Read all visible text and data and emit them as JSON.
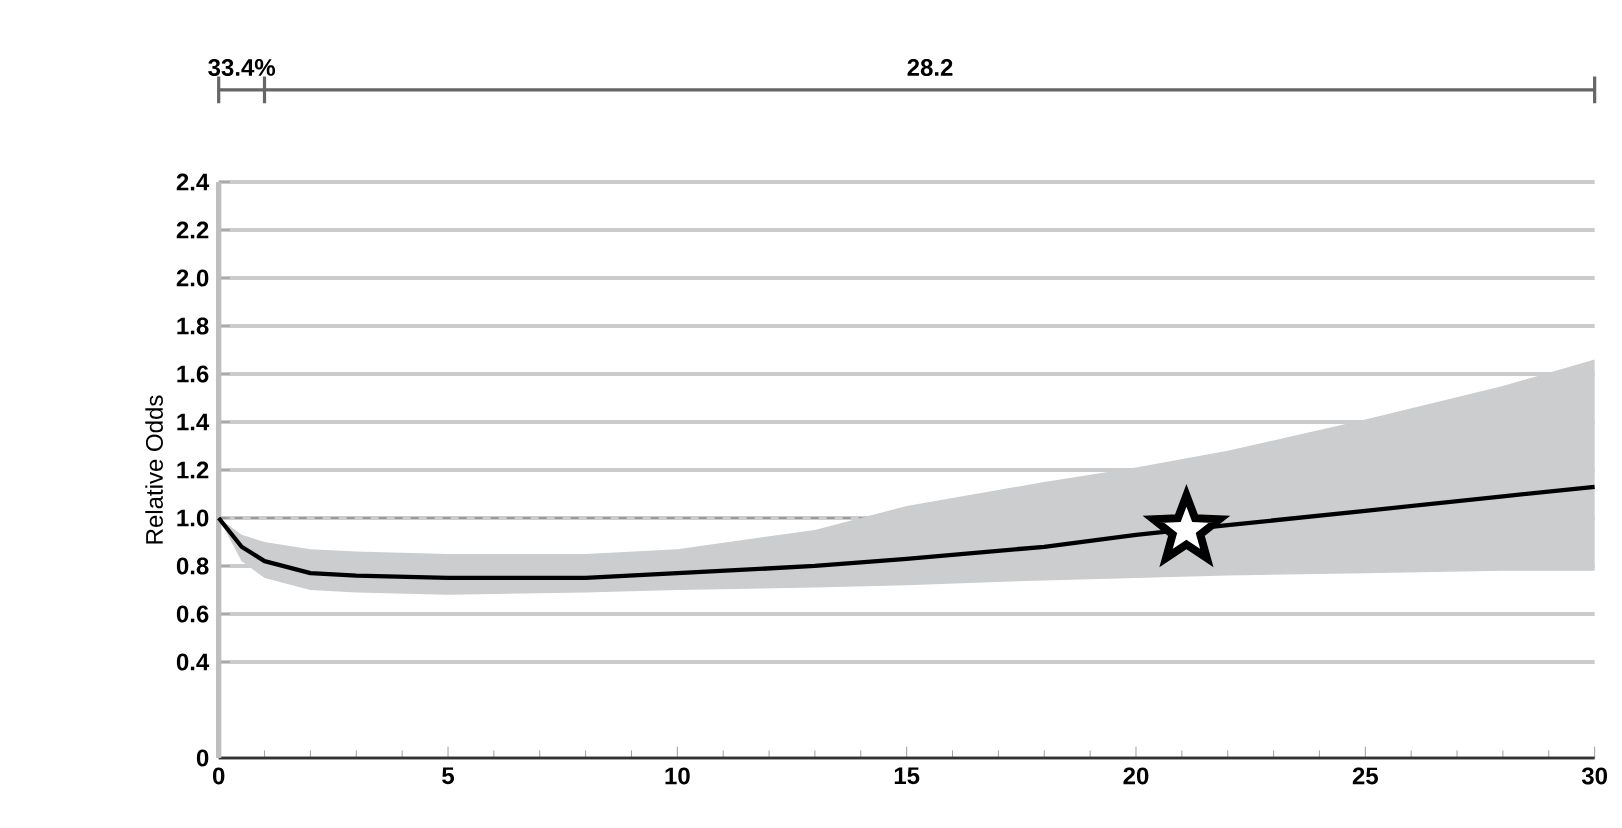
{
  "chart_data": {
    "type": "line",
    "ylabel": "Relative Odds",
    "xlim": [
      0,
      30
    ],
    "xticks": [
      0,
      5,
      10,
      15,
      20,
      25,
      30
    ],
    "ylim": [
      0,
      2.4
    ],
    "yticks": [
      {
        "value": 0,
        "label": "0"
      },
      {
        "value": 0.4,
        "label": "0.4"
      },
      {
        "value": 0.6,
        "label": "0.6"
      },
      {
        "value": 0.8,
        "label": "0.8"
      },
      {
        "value": 1.0,
        "label": "1.0"
      },
      {
        "value": 1.2,
        "label": "1.2"
      },
      {
        "value": 1.4,
        "label": "1.4"
      },
      {
        "value": 1.6,
        "label": "1.6"
      },
      {
        "value": 1.8,
        "label": "1.8"
      },
      {
        "value": 2.0,
        "label": "2.0"
      },
      {
        "value": 2.2,
        "label": "2.2"
      },
      {
        "value": 2.4,
        "label": "2.4"
      }
    ],
    "grid": "y",
    "series": [
      {
        "color": "#000000",
        "x": [
          0,
          0.5,
          1,
          2,
          3,
          5,
          8,
          10,
          13,
          15,
          18,
          20,
          22,
          25,
          28,
          30
        ],
        "values": [
          1.0,
          0.88,
          0.82,
          0.77,
          0.76,
          0.75,
          0.75,
          0.77,
          0.8,
          0.83,
          0.88,
          0.93,
          0.97,
          1.03,
          1.09,
          1.13
        ],
        "lower": [
          1.0,
          0.82,
          0.75,
          0.7,
          0.69,
          0.68,
          0.69,
          0.7,
          0.71,
          0.72,
          0.74,
          0.75,
          0.76,
          0.77,
          0.78,
          0.78
        ],
        "upper": [
          1.0,
          0.93,
          0.9,
          0.87,
          0.86,
          0.85,
          0.85,
          0.87,
          0.95,
          1.05,
          1.15,
          1.21,
          1.28,
          1.41,
          1.55,
          1.66
        ]
      },
      {
        "type": "scatter",
        "color": "#000000",
        "marker": "star",
        "x": [
          21.1
        ],
        "values": [
          0.95
        ]
      }
    ],
    "ref_lines": [
      {
        "axis": "y",
        "value": 1.0,
        "color": "#999999",
        "line_style": "dashed"
      }
    ],
    "annotations": [
      "33.4%",
      "28.2"
    ]
  }
}
